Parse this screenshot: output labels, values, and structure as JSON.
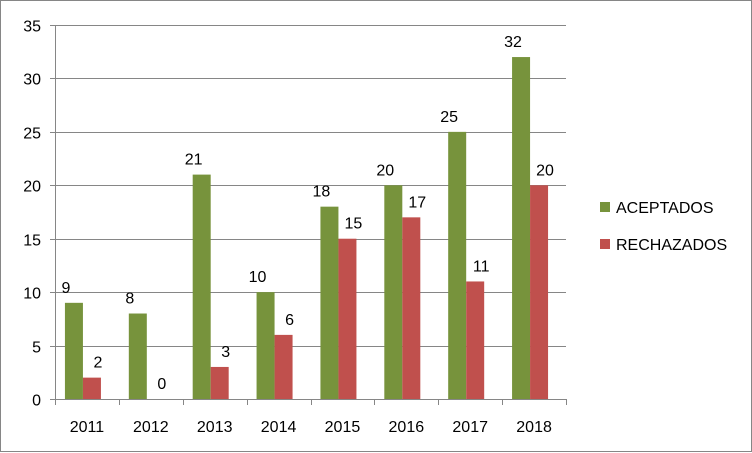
{
  "chart_data": {
    "type": "bar",
    "categories": [
      "2011",
      "2012",
      "2013",
      "2014",
      "2015",
      "2016",
      "2017",
      "2018"
    ],
    "series": [
      {
        "name": "ACEPTADOS",
        "values": [
          9,
          8,
          21,
          10,
          18,
          20,
          25,
          32
        ],
        "color": "#77933C"
      },
      {
        "name": "RECHAZADOS",
        "values": [
          2,
          0,
          3,
          6,
          15,
          17,
          11,
          20
        ],
        "color": "#C0504D"
      }
    ],
    "title": "",
    "xlabel": "",
    "ylabel": "",
    "ylim": [
      0,
      35
    ],
    "yticks": [
      0,
      5,
      10,
      15,
      20,
      25,
      30,
      35
    ],
    "grid": true,
    "data_labels": true,
    "legend_position": "right"
  }
}
